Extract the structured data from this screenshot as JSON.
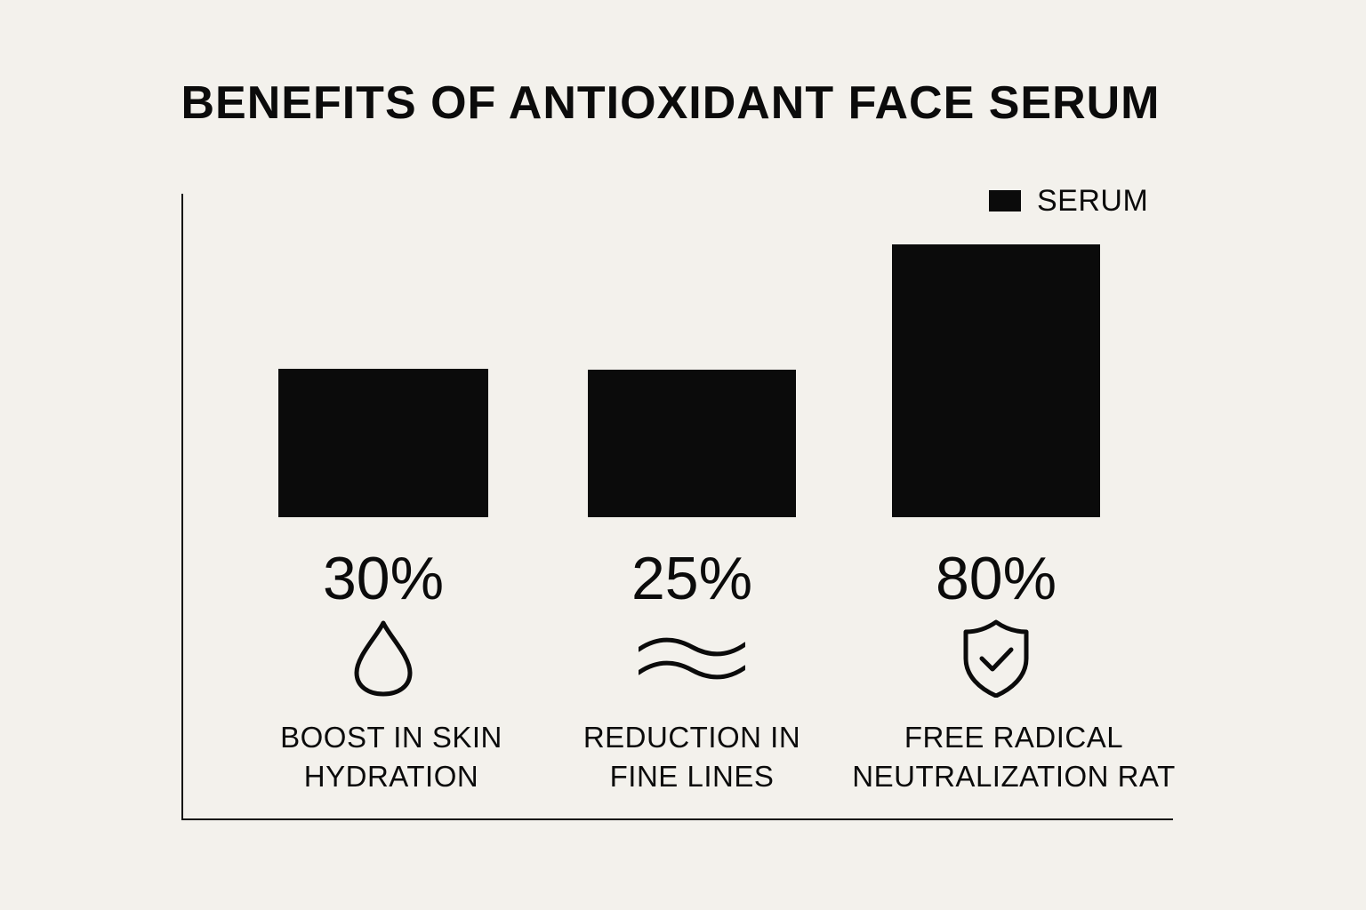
{
  "chart_data": {
    "type": "bar",
    "title": "BENEFITS OF ANTIOXIDANT FACE SERUM",
    "legend": {
      "position": "top-right",
      "entries": [
        "SERUM"
      ]
    },
    "series": [
      {
        "name": "SERUM",
        "values": [
          30,
          25,
          80
        ]
      }
    ],
    "categories": [
      {
        "label_lines": [
          "BOOST IN SKIN",
          "HYDRATION"
        ],
        "icon": "water-drop-icon"
      },
      {
        "label_lines": [
          "REDUCTION IN",
          "FINE LINES"
        ],
        "icon": "wavy-lines-icon"
      },
      {
        "label_lines": [
          "FREE RADICAL",
          "NEUTRALIZATION RAT"
        ],
        "icon": "shield-check-icon"
      }
    ],
    "value_labels": [
      "30%",
      "25%",
      "80%"
    ],
    "bar_color": "#0b0b0b",
    "background_color": "#f3f1ec",
    "grid": false
  }
}
